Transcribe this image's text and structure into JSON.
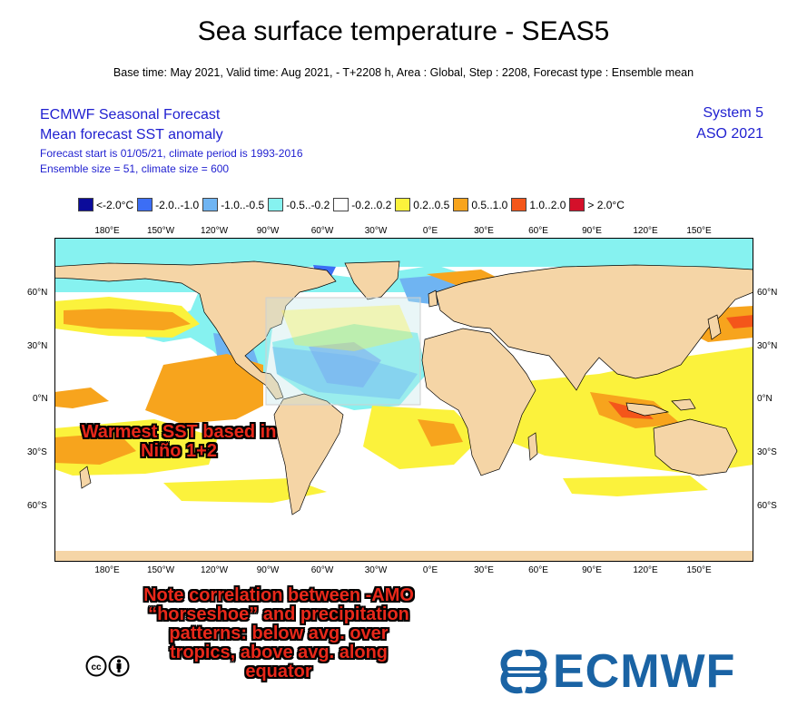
{
  "header": {
    "title": "Sea surface temperature - SEAS5",
    "subtitle": "Base time: May 2021, Valid time: Aug 2021, - T+2208 h, Area : Global, Step : 2208, Forecast type : Ensemble mean"
  },
  "info": {
    "line1": "ECMWF Seasonal Forecast",
    "line2": "Mean forecast SST anomaly",
    "line3": "Forecast start is 01/05/21, climate period is 1993-2016",
    "line4": "Ensemble size = 51, climate size = 600",
    "system": "System 5",
    "season": "ASO 2021"
  },
  "legend": [
    {
      "label": "<-2.0°C",
      "color": "#0b0b9a"
    },
    {
      "label": "-2.0..-1.0",
      "color": "#3c6ef5"
    },
    {
      "label": "-1.0..-0.5",
      "color": "#6fb4f2"
    },
    {
      "label": "-0.5..-0.2",
      "color": "#86f2f0"
    },
    {
      "label": "-0.2..0.2",
      "color": "#ffffff"
    },
    {
      "label": "0.2..0.5",
      "color": "#fbf23c"
    },
    {
      "label": "0.5..1.0",
      "color": "#f7a41d"
    },
    {
      "label": "1.0..2.0",
      "color": "#f4561a"
    },
    {
      "label": "> 2.0°C",
      "color": "#d4102a"
    }
  ],
  "lon_ticks": [
    "180°E",
    "150°W",
    "120°W",
    "90°W",
    "60°W",
    "30°W",
    "0°E",
    "30°E",
    "60°E",
    "90°E",
    "120°E",
    "150°E"
  ],
  "lat_ticks": [
    "60°N",
    "30°N",
    "0°N",
    "30°S",
    "60°S"
  ],
  "annotations": {
    "warmest": "Warmest SST based in Niño 1+2",
    "note": "Note correlation between -AMO “horseshoe” and precipitation patterns: below avg. over tropics, above avg. along equator"
  },
  "colors": {
    "land": "#f5d5a6",
    "ocean_neutral": "#ffffff",
    "arctic": "#86f2f0",
    "brand": "#1a63a4",
    "annotation": "#e8281a"
  },
  "logo": "ECMWF"
}
